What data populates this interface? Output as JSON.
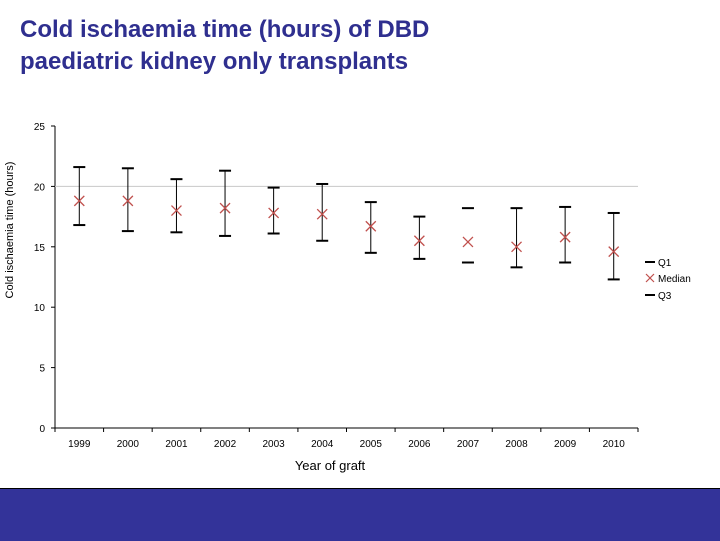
{
  "slide": {
    "title_line1": "Cold ischaemia time (hours) of DBD",
    "title_line2": "paediatric kidney only transplants"
  },
  "colors": {
    "title": "#2f2f8f",
    "median_marker": "#c0504d",
    "quartile_marker": "#000000",
    "footer": "#333399"
  },
  "chart_data": {
    "type": "scatter",
    "title": "",
    "xlabel": "Year of graft",
    "ylabel": "Cold ischaemia time (hours)",
    "ylim": [
      0,
      25
    ],
    "yticks": [
      0,
      5,
      10,
      15,
      20,
      25
    ],
    "grid": "horizontal line at 20",
    "legend_position": "right",
    "categories": [
      "1999",
      "2000",
      "2001",
      "2002",
      "2003",
      "2004",
      "2005",
      "2006",
      "2007",
      "2008",
      "2009",
      "2010"
    ],
    "series": [
      {
        "name": "Q1",
        "marker": "dash",
        "values": [
          16.8,
          16.3,
          16.2,
          15.9,
          16.1,
          15.5,
          14.5,
          14.0,
          13.7,
          13.3,
          13.7,
          12.3
        ]
      },
      {
        "name": "Median",
        "marker": "x",
        "values": [
          18.8,
          18.8,
          18.0,
          18.2,
          17.8,
          17.7,
          16.7,
          15.5,
          15.4,
          15.0,
          15.8,
          14.6
        ]
      },
      {
        "name": "Q3",
        "marker": "dash",
        "values": [
          21.6,
          21.5,
          20.6,
          21.3,
          19.9,
          20.2,
          18.7,
          17.5,
          18.2,
          18.2,
          18.3,
          17.8
        ]
      }
    ],
    "error_bars": [
      true,
      true,
      true,
      true,
      true,
      true,
      true,
      true,
      false,
      true,
      true,
      true
    ]
  }
}
